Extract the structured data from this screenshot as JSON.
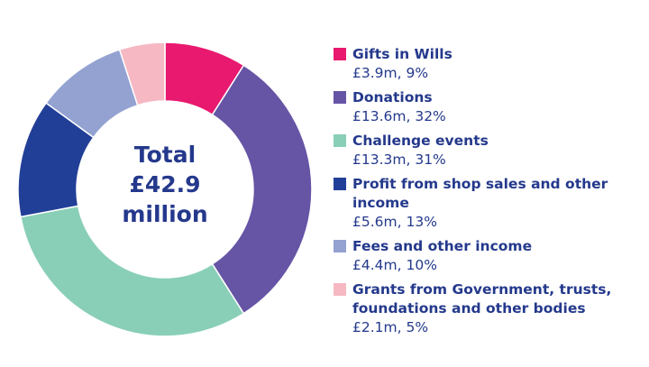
{
  "chart_data": {
    "type": "pie",
    "title": "",
    "center_label": [
      "Total",
      "£42.9",
      "million"
    ],
    "categories": [
      "Gifts in Wills",
      "Donations",
      "Challenge events",
      "Profit from shop sales and other income",
      "Fees and other income",
      "Grants from Government, trusts, foundations and other bodies"
    ],
    "values": [
      3.9,
      13.6,
      13.3,
      5.6,
      4.4,
      2.1
    ],
    "percent": [
      9,
      32,
      31,
      13,
      10,
      5
    ],
    "value_labels": [
      "£3.9m, 9%",
      "£13.6m, 32%",
      "£13.3m, 31%",
      "£5.6m, 13%",
      "£4.4m, 10%",
      "£2.1m, 5%"
    ],
    "colors": [
      "#e8196f",
      "#6654a5",
      "#89cfb7",
      "#223f98",
      "#93a2d1",
      "#f6b8c3"
    ],
    "legend": "right"
  }
}
